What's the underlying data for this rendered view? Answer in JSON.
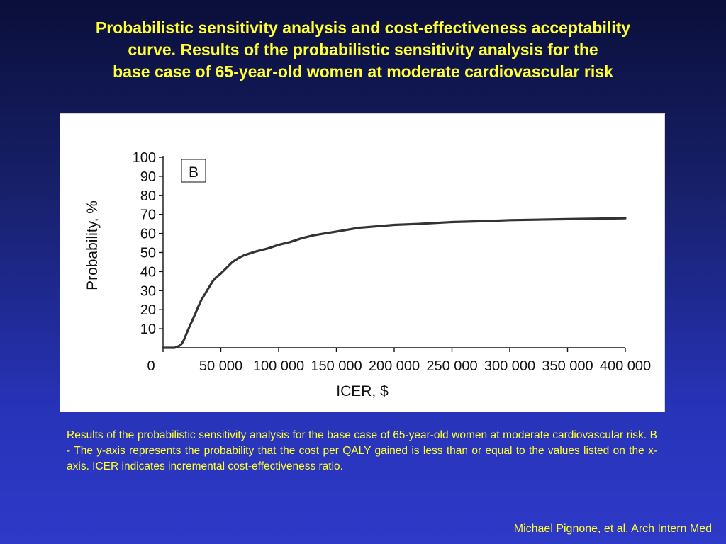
{
  "title": {
    "line1": "Probabilistic sensitivity analysis and cost-effectiveness acceptability",
    "line2": "curve. Results of the probabilistic sensitivity analysis for the",
    "line3": "base case of 65-year-old women at moderate cardiovascular risk"
  },
  "caption": "Results of the probabilistic sensitivity analysis for the base case of 65-year-old women at moderate cardiovascular risk.  B - The y-axis represents the probability that the cost per QALY gained is less than or equal to the values listed on the x-axis. ICER indicates incremental cost-effectiveness ratio.",
  "citation": "Michael Pignone, et al. Arch Intern Med",
  "colors": {
    "accent_text": "#ffff33",
    "curve": "#333333"
  },
  "chart_data": {
    "type": "line",
    "panel_label": "B",
    "xlabel": "ICER, $",
    "ylabel": "Probability, %",
    "xlim": [
      0,
      400000
    ],
    "ylim": [
      0,
      100
    ],
    "x_ticks": [
      0,
      50000,
      100000,
      150000,
      200000,
      250000,
      300000,
      350000,
      400000
    ],
    "x_tick_labels": [
      "0",
      "50 000",
      "100 000",
      "150 000",
      "200 000",
      "250 000",
      "300 000",
      "350 000",
      "400 000"
    ],
    "y_ticks": [
      10,
      20,
      30,
      40,
      50,
      60,
      70,
      80,
      90,
      100
    ],
    "y_tick_labels": [
      "10",
      "20",
      "30",
      "40",
      "50",
      "60",
      "70",
      "80",
      "90",
      "100"
    ],
    "grid": false,
    "series": [
      {
        "x": [
          0,
          10000,
          12000,
          14000,
          16000,
          18000,
          20000,
          22000,
          25000,
          28000,
          30000,
          33000,
          36000,
          40000,
          43000,
          46000,
          50000,
          55000,
          60000,
          65000,
          70000,
          75000,
          80000,
          90000,
          100000,
          110000,
          120000,
          130000,
          140000,
          150000,
          160000,
          170000,
          180000,
          200000,
          220000,
          250000,
          280000,
          300000,
          350000,
          400000
        ],
        "y": [
          0,
          0,
          0.5,
          1,
          2,
          4,
          7,
          10,
          14,
          18,
          21,
          25,
          28,
          32,
          35,
          37,
          39,
          42,
          45,
          47,
          48.5,
          49.5,
          50.5,
          52,
          54,
          55.5,
          57.5,
          59,
          60,
          61,
          62,
          63,
          63.5,
          64.5,
          65,
          66,
          66.5,
          67,
          67.5,
          68
        ]
      }
    ]
  }
}
